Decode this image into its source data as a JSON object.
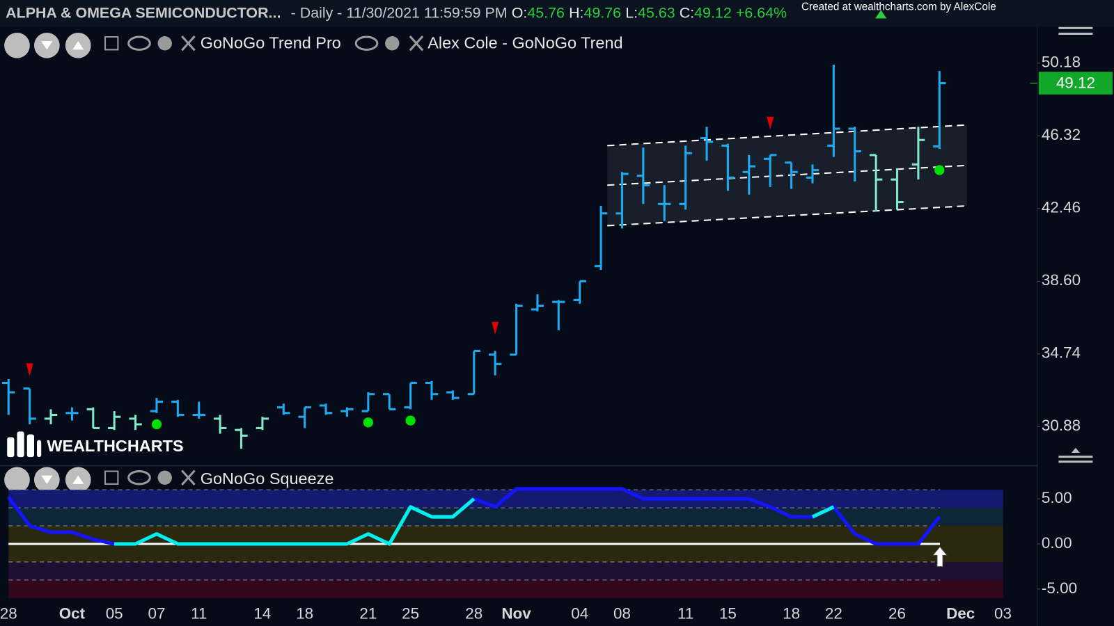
{
  "header": {
    "symbol": "ALPHA & OMEGA SEMICONDUCTOR...",
    "period": "- Daily - 11/30/2021 11:59:59 PM",
    "open_label": "O:",
    "high_label": "H:",
    "low_label": "L:",
    "close_label": "C:",
    "change": "+6.64%",
    "credit": "Created at wealthcharts.com by AlexCole",
    "logo": "WEALTHCHARTS"
  },
  "chart_data": [
    {
      "type": "ohlc",
      "indicators": [
        "GoNoGo Trend Pro",
        "Alex Cole - GoNoGo Trend"
      ],
      "categories": [
        "28",
        null,
        null,
        "Oct",
        null,
        "05",
        null,
        "07",
        null,
        "11",
        null,
        null,
        "14",
        null,
        "18",
        null,
        null,
        "21",
        null,
        "25",
        null,
        null,
        "28",
        null,
        "Nov",
        null,
        null,
        "04",
        null,
        "08",
        null,
        null,
        "11",
        null,
        "15",
        null,
        null,
        "18",
        null,
        "22",
        null,
        null,
        "26",
        null,
        null,
        "Dec",
        null,
        "03"
      ],
      "open": [
        33.2,
        32.9,
        31.3,
        31.6,
        31.8,
        30.8,
        31.3,
        31.7,
        32.2,
        31.5,
        31.3,
        30.7,
        30.8,
        31.9,
        31.4,
        32.0,
        31.7,
        31.7,
        32.6,
        31.9,
        33.2,
        32.7,
        32.6,
        34.7,
        34.7,
        37.1,
        37.5,
        37.6,
        39.4,
        42.2,
        44.2,
        42.7,
        42.7,
        46.2,
        45.8,
        44.4,
        45.1,
        44.9,
        44.1,
        45.8,
        46.7,
        45.3,
        44.0,
        44.8,
        45.76,
        null,
        null,
        null
      ],
      "high": [
        33.4,
        32.9,
        31.8,
        31.9,
        31.9,
        31.7,
        31.5,
        32.4,
        32.3,
        32.2,
        31.5,
        30.8,
        31.4,
        32.1,
        31.9,
        32.1,
        31.9,
        32.7,
        32.6,
        33.2,
        33.3,
        32.8,
        34.9,
        34.9,
        37.4,
        37.9,
        37.6,
        38.6,
        42.6,
        44.4,
        45.7,
        43.7,
        45.8,
        46.8,
        45.9,
        45.3,
        45.3,
        44.9,
        44.8,
        50.1,
        46.8,
        45.3,
        44.6,
        46.8,
        49.76,
        null,
        null,
        null
      ],
      "low": [
        31.5,
        31.0,
        31.0,
        31.2,
        30.8,
        30.7,
        30.7,
        31.6,
        31.4,
        31.3,
        30.5,
        29.7,
        30.7,
        31.5,
        30.8,
        31.5,
        31.4,
        31.7,
        31.8,
        31.8,
        32.3,
        32.3,
        32.6,
        33.6,
        34.7,
        37.0,
        36.0,
        37.4,
        39.2,
        41.4,
        42.7,
        41.8,
        42.4,
        45.0,
        43.4,
        43.2,
        43.6,
        43.5,
        43.8,
        45.2,
        43.9,
        42.3,
        42.4,
        44.0,
        45.63,
        null,
        null,
        null
      ],
      "close": [
        32.7,
        31.3,
        31.5,
        31.6,
        30.8,
        31.4,
        31.0,
        32.2,
        31.5,
        31.5,
        30.8,
        30.4,
        31.3,
        31.6,
        31.9,
        31.6,
        31.8,
        32.6,
        31.8,
        33.2,
        32.6,
        32.4,
        34.9,
        34.2,
        37.3,
        37.3,
        37.5,
        38.6,
        42.2,
        44.3,
        43.7,
        42.7,
        45.4,
        46.0,
        44.1,
        44.7,
        45.3,
        44.4,
        44.5,
        46.7,
        45.5,
        44.0,
        42.8,
        46.1,
        49.12,
        null,
        null,
        null
      ],
      "bar_colors": [
        "#1eaaf0",
        "#1eaaf0",
        "#80e8c8",
        "#1eaaf0",
        "#80e8c8",
        "#80e8c8",
        "#80e8c8",
        "#1eaaf0",
        "#1eaaf0",
        "#1eaaf0",
        "#80e8c8",
        "#80e8c8",
        "#80e8c8",
        "#1eaaf0",
        "#1eaaf0",
        "#1eaaf0",
        "#1eaaf0",
        "#1eaaf0",
        "#1eaaf0",
        "#1eaaf0",
        "#1eaaf0",
        "#1eaaf0",
        "#1eaaf0",
        "#1eaaf0",
        "#1eaaf0",
        "#1eaaf0",
        "#1eaaf0",
        "#1eaaf0",
        "#1eaaf0",
        "#1eaaf0",
        "#1eaaf0",
        "#1eaaf0",
        "#1eaaf0",
        "#1eaaf0",
        "#1eaaf0",
        "#1eaaf0",
        "#1eaaf0",
        "#1eaaf0",
        "#1eaaf0",
        "#1eaaf0",
        "#1eaaf0",
        "#80e8c8",
        "#80e8c8",
        "#80e8c8",
        "#1eaaf0",
        null,
        null,
        null
      ],
      "dots": [
        null,
        null,
        null,
        null,
        null,
        null,
        null,
        31.0,
        null,
        null,
        null,
        null,
        null,
        null,
        null,
        null,
        null,
        31.1,
        null,
        31.2,
        null,
        null,
        null,
        null,
        null,
        null,
        null,
        null,
        null,
        null,
        null,
        null,
        null,
        null,
        null,
        null,
        null,
        null,
        null,
        null,
        null,
        null,
        null,
        null,
        44.5,
        null,
        null,
        null
      ],
      "dot_color": "#00e000",
      "triangles": [
        null,
        33.9,
        null,
        null,
        null,
        null,
        null,
        null,
        null,
        null,
        null,
        null,
        null,
        null,
        null,
        null,
        null,
        null,
        null,
        null,
        null,
        null,
        null,
        36.1,
        null,
        null,
        null,
        null,
        null,
        null,
        null,
        null,
        null,
        null,
        null,
        null,
        47.0,
        null,
        null,
        null,
        null,
        null,
        null,
        null,
        null,
        null,
        null,
        null
      ],
      "triangle_color": "#e00000",
      "channel": {
        "x": [
          28.3,
          45.3
        ],
        "upper": [
          45.8,
          46.9
        ],
        "middle": [
          43.7,
          44.75
        ],
        "lower": [
          41.55,
          42.6
        ]
      },
      "ylim": [
        29,
        52
      ],
      "yticks": [
        50.18,
        46.32,
        42.46,
        {
          "value": 38.6,
          "label": "38.60"
        },
        34.74,
        30.88
      ],
      "grid": false
    },
    {
      "type": "line",
      "indicators": [
        "GoNoGo Squeeze"
      ],
      "series": [
        {
          "color": "#1414ff",
          "values": [
            5.2,
            2.0,
            1.3,
            1.3,
            0.5,
            0,
            null,
            null,
            null,
            null,
            null,
            null,
            null,
            null,
            null,
            null,
            null,
            null,
            null,
            null,
            null,
            null,
            5.0,
            4.1,
            6.1,
            6.1,
            6.1,
            6.1,
            6.1,
            6.1,
            5.0,
            5.0,
            5.0,
            5.0,
            5.0,
            5.0,
            4.1,
            3.0,
            3.0,
            4.1,
            1.1,
            0,
            0,
            0,
            3.0,
            null,
            null,
            null
          ]
        },
        {
          "color": "#00f0f0",
          "values": [
            null,
            null,
            null,
            null,
            null,
            0,
            0,
            1.1,
            0,
            0,
            0,
            0,
            0,
            0,
            0,
            0,
            0,
            1.1,
            0,
            4.1,
            3.0,
            3.0,
            5.0,
            null,
            null,
            null,
            null,
            null,
            null,
            null,
            null,
            null,
            null,
            null,
            null,
            null,
            null,
            null,
            3.0,
            4.1,
            null,
            null,
            null,
            null,
            null,
            null,
            null,
            null
          ]
        }
      ],
      "bands": [
        {
          "from": 6,
          "to": 4,
          "color": "#141a70"
        },
        {
          "from": 4,
          "to": 2,
          "color": "#0d2638"
        },
        {
          "from": 2,
          "to": -2,
          "color": "#2b2810"
        },
        {
          "from": -2,
          "to": -4,
          "color": "#1f0f30"
        },
        {
          "from": -4,
          "to": -6,
          "color": "#33081f"
        }
      ],
      "ylim": [
        -6.5,
        7.5
      ],
      "yticks": [
        {
          "value": 5,
          "label": "5.00"
        },
        {
          "value": 0,
          "label": "0.00"
        },
        {
          "value": -5,
          "label": "-5.00"
        }
      ],
      "grid": false
    }
  ]
}
